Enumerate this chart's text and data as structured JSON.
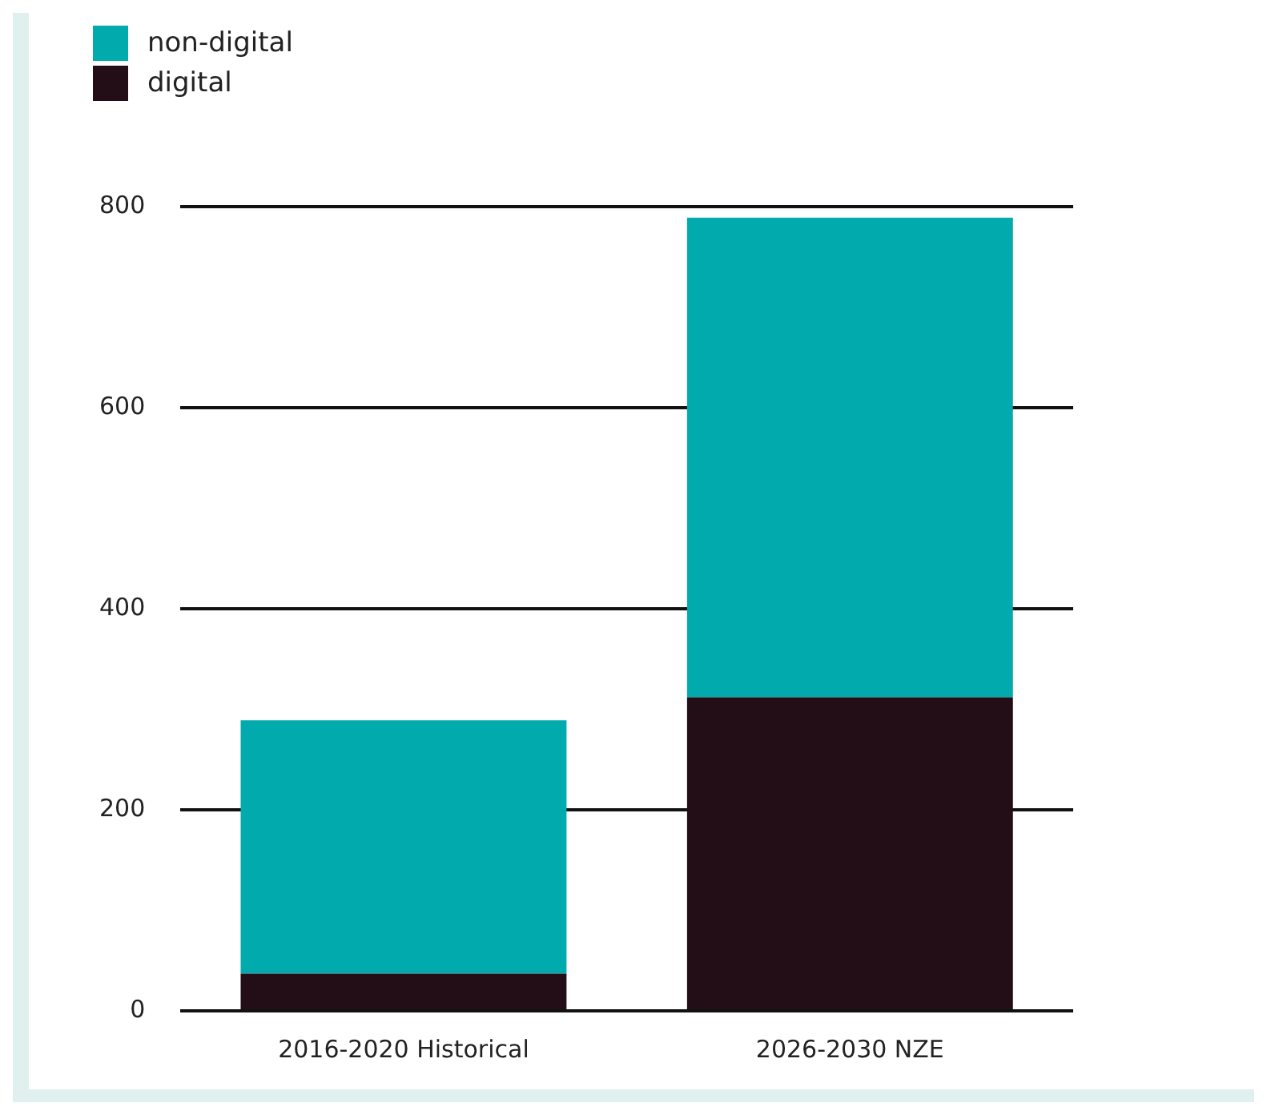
{
  "chart_data": {
    "type": "bar",
    "categories": [
      "2016-2020 Historical",
      "2026-2030 NZE"
    ],
    "stacked": true,
    "series": [
      {
        "name": "digital",
        "color": "#230d16",
        "values": [
          37,
          312
        ]
      },
      {
        "name": "non-digital",
        "color": "#00aaad",
        "values": [
          252,
          477
        ]
      }
    ],
    "ylim": [
      0,
      800
    ],
    "yticks": [
      0,
      200,
      400,
      600,
      800
    ],
    "grid": "y",
    "legend": "top left"
  }
}
